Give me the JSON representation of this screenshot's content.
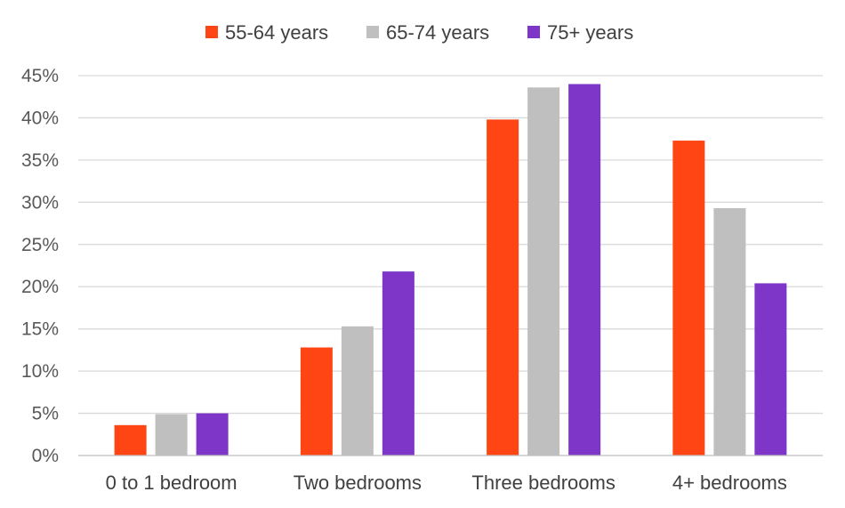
{
  "chart_data": {
    "type": "bar",
    "title": "",
    "xlabel": "",
    "ylabel": "",
    "categories": [
      "0 to 1 bedroom",
      "Two bedrooms",
      "Three bedrooms",
      "4+ bedrooms"
    ],
    "series": [
      {
        "name": "55-64 years",
        "color": "#ff4513",
        "values": [
          3.6,
          12.8,
          39.8,
          37.3
        ]
      },
      {
        "name": "65-74 years",
        "color": "#bfbfbf",
        "values": [
          4.9,
          15.3,
          43.6,
          29.3
        ]
      },
      {
        "name": "75+ years",
        "color": "#7e36c8",
        "values": [
          5.0,
          21.8,
          44.0,
          20.4
        ]
      }
    ],
    "ylim": [
      0,
      45
    ],
    "yticks": [
      0,
      5,
      10,
      15,
      20,
      25,
      30,
      35,
      40,
      45
    ],
    "ytick_labels": [
      "0%",
      "5%",
      "10%",
      "15%",
      "20%",
      "25%",
      "30%",
      "35%",
      "40%",
      "45%"
    ],
    "value_format": "percent",
    "grid": true,
    "legend_position": "top-center"
  }
}
